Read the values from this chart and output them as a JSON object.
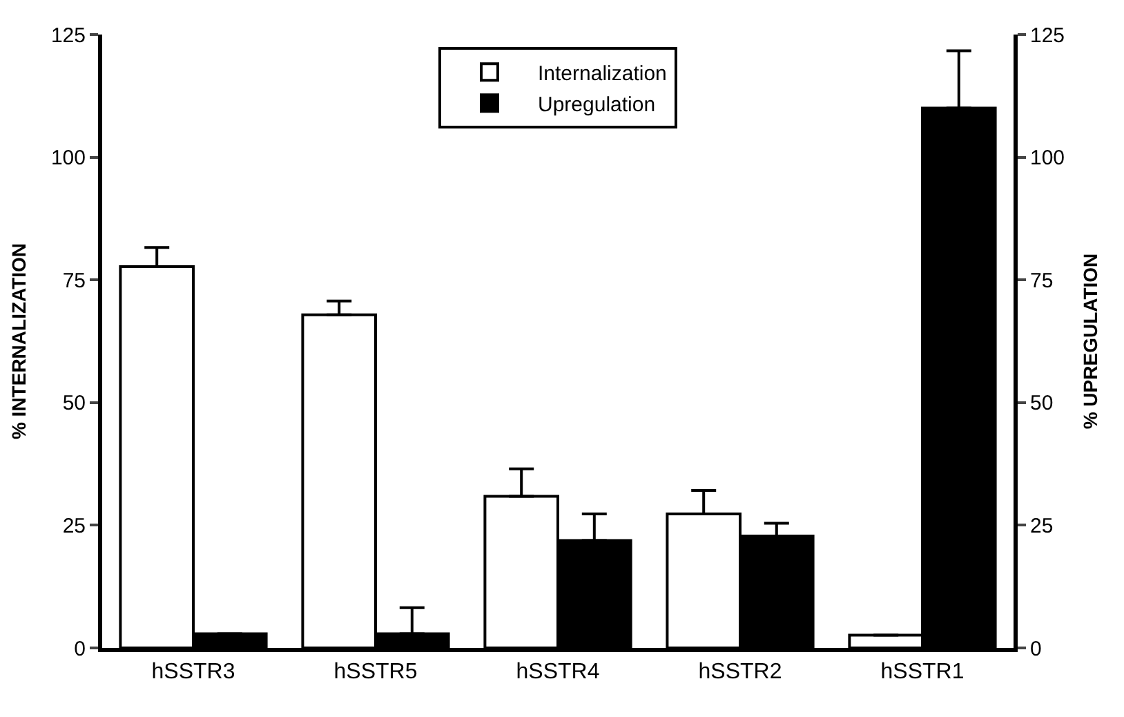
{
  "chart_data": {
    "type": "bar",
    "categories": [
      "hSSTR3",
      "hSSTR5",
      "hSSTR4",
      "hSSTR2",
      "hSSTR1"
    ],
    "series": [
      {
        "name": "Internalization",
        "color": "#ffffff",
        "values": [
          77.7,
          67.9,
          30.9,
          27.3,
          2.6
        ],
        "errors": [
          [
            77.7,
            81.6
          ],
          [
            67.9,
            70.7
          ],
          [
            30.9,
            36.5
          ],
          [
            27.3,
            32.1
          ],
          null
        ]
      },
      {
        "name": "Upregulation",
        "color": "#000000",
        "axis": "y2",
        "values": [
          2.9,
          2.9,
          21.9,
          22.8,
          110
        ],
        "errors": [
          null,
          [
            2.9,
            8.2
          ],
          [
            21.9,
            27.3
          ],
          [
            22.8,
            25.4
          ],
          [
            110,
            121.7
          ]
        ]
      }
    ],
    "ylabel": "% INTERNALIZATION",
    "y2label": "% UPREGULATION",
    "ylim": [
      0,
      125
    ],
    "yticks": [
      0,
      25,
      50,
      75,
      100,
      125
    ],
    "y2lim": [
      0,
      125
    ],
    "y2ticks": [
      0,
      25,
      50,
      75,
      100,
      125
    ],
    "legend": "top"
  }
}
